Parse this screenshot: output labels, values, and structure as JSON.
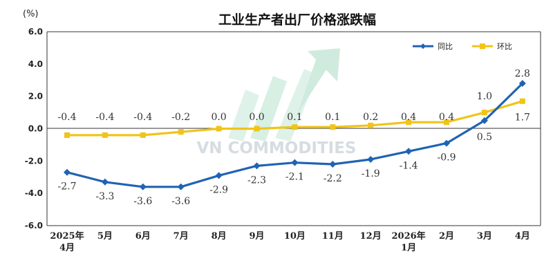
{
  "colors": {
    "yoy": "#1f63b4",
    "mom": "#f0c419",
    "watermark_arrow": "#c5e8d8",
    "watermark_text": "#c9d1d6"
  },
  "watermark": {
    "text": "VN COMMODITIES"
  },
  "chart_data": {
    "type": "line",
    "title": "工业生产者出厂价格涨跌幅",
    "unit_label": "(%)",
    "categories": [
      [
        "2025年",
        "4月"
      ],
      [
        "5月"
      ],
      [
        "6月"
      ],
      [
        "7月"
      ],
      [
        "8月"
      ],
      [
        "9月"
      ],
      [
        "10月"
      ],
      [
        "11月"
      ],
      [
        "12月"
      ],
      [
        "2026年",
        "1月"
      ],
      [
        "2月"
      ],
      [
        "3月"
      ],
      [
        "4月"
      ]
    ],
    "yticks": [
      "6.0",
      "4.0",
      "2.0",
      "0.0",
      "-2.0",
      "-4.0",
      "-6.0"
    ],
    "ylim": [
      -6,
      6
    ],
    "grid": false,
    "legend_position": "top-right",
    "series": [
      {
        "name": "同比",
        "values": [
          -2.7,
          -3.3,
          -3.6,
          -3.6,
          -2.9,
          -2.3,
          -2.1,
          -2.2,
          -1.9,
          -1.4,
          -0.9,
          0.5,
          2.8
        ],
        "labels": [
          "-2.7",
          "-3.3",
          "-3.6",
          "-3.6",
          "-2.9",
          "-2.3",
          "-2.1",
          "-2.2",
          "-1.9",
          "-1.4",
          "-0.9",
          "0.5",
          "2.8"
        ]
      },
      {
        "name": "环比",
        "values": [
          -0.4,
          -0.4,
          -0.4,
          -0.2,
          0.0,
          0.0,
          0.1,
          0.1,
          0.2,
          0.4,
          0.4,
          1.0,
          1.7
        ],
        "labels": [
          "-0.4",
          "-0.4",
          "-0.4",
          "-0.2",
          "0.0",
          "0.0",
          "0.1",
          "0.1",
          "0.2",
          "0.4",
          "0.4",
          "1.0",
          "1.7"
        ]
      }
    ]
  }
}
